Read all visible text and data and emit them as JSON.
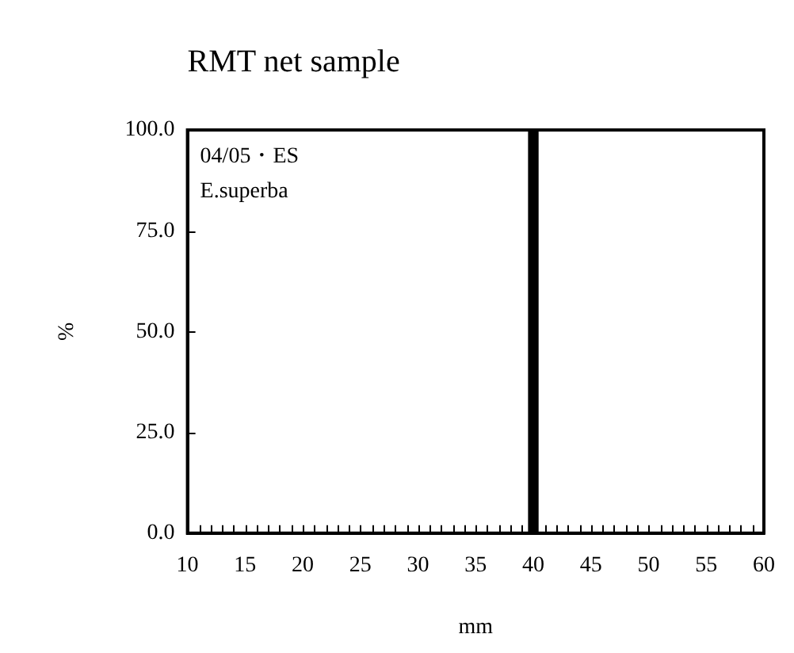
{
  "chart_data": {
    "type": "bar",
    "title": "RMT net sample",
    "xlabel": "mm",
    "ylabel": "%",
    "annotations": [
      "04/05・ES",
      "E.superba"
    ],
    "x": [
      40
    ],
    "values": [
      100
    ],
    "color": "#000000",
    "xlim": [
      10,
      60
    ],
    "xticks": [
      10,
      {
        "value": 11,
        "label": null
      },
      {
        "value": 12,
        "label": null
      },
      {
        "value": 13,
        "label": null
      },
      {
        "value": 14,
        "label": null
      },
      15,
      {
        "value": 16,
        "label": null
      },
      {
        "value": 17,
        "label": null
      },
      {
        "value": 18,
        "label": null
      },
      {
        "value": 19,
        "label": null
      },
      20,
      {
        "value": 21,
        "label": null
      },
      {
        "value": 22,
        "label": null
      },
      {
        "value": 23,
        "label": null
      },
      {
        "value": 24,
        "label": null
      },
      25,
      {
        "value": 26,
        "label": null
      },
      {
        "value": 27,
        "label": null
      },
      {
        "value": 28,
        "label": null
      },
      {
        "value": 29,
        "label": null
      },
      30,
      {
        "value": 31,
        "label": null
      },
      {
        "value": 32,
        "label": null
      },
      {
        "value": 33,
        "label": null
      },
      {
        "value": 34,
        "label": null
      },
      35,
      {
        "value": 36,
        "label": null
      },
      {
        "value": 37,
        "label": null
      },
      {
        "value": 38,
        "label": null
      },
      {
        "value": 39,
        "label": null
      },
      40,
      {
        "value": 41,
        "label": null
      },
      {
        "value": 42,
        "label": null
      },
      {
        "value": 43,
        "label": null
      },
      {
        "value": 44,
        "label": null
      },
      45,
      {
        "value": 46,
        "label": null
      },
      {
        "value": 47,
        "label": null
      },
      {
        "value": 48,
        "label": null
      },
      {
        "value": 49,
        "label": null
      },
      50,
      {
        "value": 51,
        "label": null
      },
      {
        "value": 52,
        "label": null
      },
      {
        "value": 53,
        "label": null
      },
      {
        "value": 54,
        "label": null
      },
      55,
      {
        "value": 56,
        "label": null
      },
      {
        "value": 57,
        "label": null
      },
      {
        "value": 58,
        "label": null
      },
      {
        "value": 59,
        "label": null
      },
      60
    ],
    "ylim": [
      0,
      100
    ],
    "yticks": [
      {
        "value": 0,
        "label": "0.0"
      },
      {
        "value": 25,
        "label": "25.0"
      },
      {
        "value": 50,
        "label": "50.0"
      },
      {
        "value": 75,
        "label": "75.0"
      },
      {
        "value": 100,
        "label": "100.0"
      }
    ],
    "grid": false
  }
}
